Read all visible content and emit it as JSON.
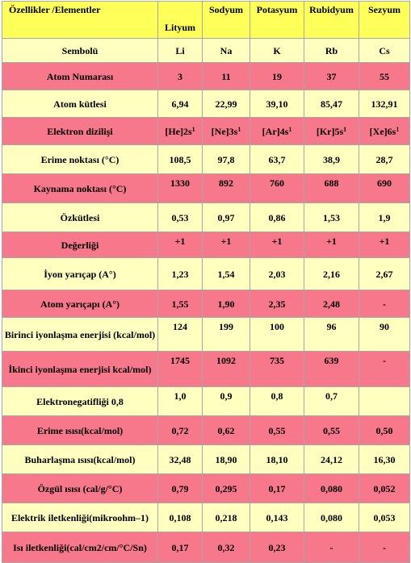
{
  "header": {
    "property": "Özellikler /Elementler",
    "elements": [
      "Lityum",
      "Sodyum",
      "Potasyum",
      "Rubidyum",
      "Sezyum"
    ]
  },
  "rows": [
    {
      "property": "Sembolü",
      "values": [
        "Li",
        "Na",
        "K",
        "Rb",
        "Cs"
      ]
    },
    {
      "property": "Atom Numarası",
      "values": [
        "3",
        "11",
        "19",
        "37",
        "55"
      ]
    },
    {
      "property": "Atom kütlesi",
      "values": [
        "6,94",
        "22,99",
        "39,10",
        "85,47",
        "132,91"
      ]
    },
    {
      "property": "Elektron dizilişi",
      "values": [
        "[He]2s",
        "[Ne]3s",
        "[Ar]4s",
        "[Kr]5s",
        "[Xe]6s"
      ],
      "superscripts": [
        "1",
        "1",
        "1",
        "1",
        "1"
      ]
    },
    {
      "property": "Erime noktası (°C)",
      "values": [
        "108,5",
        "97,8",
        "63,7",
        "38,9",
        "28,7"
      ]
    },
    {
      "property": "Kaynama noktası (°C)",
      "values": [
        "1330",
        "892",
        "760",
        "688",
        "690"
      ]
    },
    {
      "property": "Özkütlesi",
      "values": [
        "0,53",
        "0,97",
        "0,86",
        "1,53",
        "1,9"
      ]
    },
    {
      "property": "Değerliği",
      "values": [
        "+1",
        "+1",
        "+1",
        "+1",
        "+1"
      ]
    },
    {
      "property": "İyon yarıçap (A°)",
      "values": [
        "1,23",
        "1,54",
        "2,03",
        "2,16",
        "2,67"
      ]
    },
    {
      "property": "Atom yarıçapı (A°)",
      "values": [
        "1,55",
        "1,90",
        "2,35",
        "2,48",
        "-"
      ]
    },
    {
      "property": "Birinci iyonlaşma enerjisi (kcal/mol)",
      "values": [
        "124",
        "199",
        "100",
        "96",
        "90"
      ]
    },
    {
      "property": "İkinci iyonlaşma enerjisi kcal/mol)",
      "values": [
        "1745",
        "1092",
        "735",
        "639",
        "-"
      ]
    },
    {
      "property": "Elektronegatifliği 0,8",
      "values": [
        "1,0",
        "0,9",
        "0,8",
        "0,7",
        ""
      ]
    },
    {
      "property": "Erime ısısı(kcal/mol)",
      "values": [
        "0,72",
        "0,62",
        "0,55",
        "0,55",
        "0,50"
      ]
    },
    {
      "property": "Buharlaşma ısısı(kcal/mol)",
      "values": [
        "32,48",
        "18,90",
        "18,10",
        "24,12",
        "16,30"
      ]
    },
    {
      "property": "Özgül ısısı (cal/g/°C)",
      "values": [
        "0,79",
        "0,295",
        "0,17",
        "0,080",
        "0,052"
      ]
    },
    {
      "property": "Elektrik iletkenliği(mikroohm–1)",
      "values": [
        "0,108",
        "0,218",
        "0,143",
        "0,080",
        "0,053"
      ]
    },
    {
      "property": "Isı iletkenliği(cal/cm2/cm/°C/Sn)",
      "values": [
        "0,17",
        "0,32",
        "0,23",
        "-",
        "-"
      ]
    }
  ],
  "colors": {
    "header": "#ffff5a",
    "row_light": "#ffffc0",
    "row_pink": "#f6788a",
    "border": "#a7a7a7"
  }
}
